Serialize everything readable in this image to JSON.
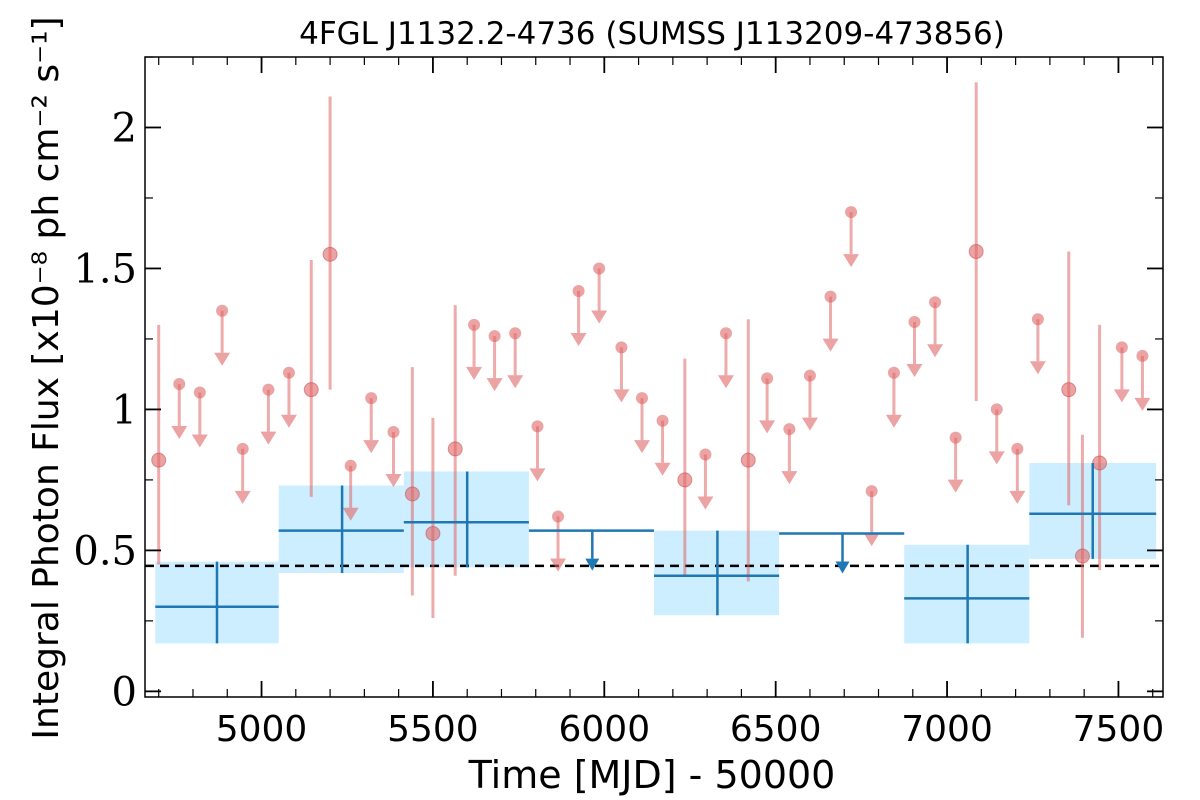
{
  "chart_data": {
    "type": "scatter",
    "title": "4FGL J1132.2-4736 (SUMSS J113209-473856)",
    "xlabel": "Time [MJD] - 50000",
    "ylabel": "Integral Photon Flux [x10⁻⁸ ph cm⁻² s⁻¹]",
    "xlim": [
      4660,
      7630
    ],
    "ylim": [
      -0.02,
      2.25
    ],
    "x_ticks": [
      5000,
      5500,
      6000,
      6500,
      7000,
      7500
    ],
    "x_tick_labels": [
      "5000",
      "5500",
      "6000",
      "6500",
      "7000",
      "7500"
    ],
    "y_ticks": [
      0,
      0.5,
      1,
      1.5,
      2
    ],
    "y_tick_labels": [
      "0",
      "0.5",
      "1",
      "1.5",
      "2"
    ],
    "reference_line": {
      "y": 0.445,
      "style": "dashed",
      "color": "#000000"
    },
    "colors": {
      "fine_bins": "#e06666",
      "coarse_bins": "#1f77b4",
      "coarse_band": "#cceeff"
    },
    "fine_bins_detections": [
      {
        "x": 4700,
        "y": 0.82,
        "ylo": 0.45,
        "yhi": 1.3
      },
      {
        "x": 5145,
        "y": 1.07,
        "ylo": 0.69,
        "yhi": 1.53
      },
      {
        "x": 5200,
        "y": 1.55,
        "ylo": 1.07,
        "yhi": 2.11
      },
      {
        "x": 5440,
        "y": 0.7,
        "ylo": 0.34,
        "yhi": 1.15
      },
      {
        "x": 5500,
        "y": 0.56,
        "ylo": 0.26,
        "yhi": 0.97
      },
      {
        "x": 5565,
        "y": 0.86,
        "ylo": 0.41,
        "yhi": 1.37
      },
      {
        "x": 6235,
        "y": 0.75,
        "ylo": 0.41,
        "yhi": 1.18
      },
      {
        "x": 6420,
        "y": 0.82,
        "ylo": 0.39,
        "yhi": 1.32
      },
      {
        "x": 7085,
        "y": 1.56,
        "ylo": 1.03,
        "yhi": 2.16
      },
      {
        "x": 7355,
        "y": 1.07,
        "ylo": 0.66,
        "yhi": 1.56
      },
      {
        "x": 7395,
        "y": 0.48,
        "ylo": 0.19,
        "yhi": 0.91
      },
      {
        "x": 7445,
        "y": 0.81,
        "ylo": 0.43,
        "yhi": 1.3
      }
    ],
    "fine_bins_upper_limits": [
      {
        "x": 4760,
        "y": 1.09
      },
      {
        "x": 4820,
        "y": 1.06
      },
      {
        "x": 4885,
        "y": 1.35
      },
      {
        "x": 4945,
        "y": 0.86
      },
      {
        "x": 5020,
        "y": 1.07
      },
      {
        "x": 5080,
        "y": 1.13
      },
      {
        "x": 5260,
        "y": 0.8
      },
      {
        "x": 5320,
        "y": 1.04
      },
      {
        "x": 5385,
        "y": 0.92
      },
      {
        "x": 5620,
        "y": 1.3
      },
      {
        "x": 5680,
        "y": 1.26
      },
      {
        "x": 5740,
        "y": 1.27
      },
      {
        "x": 5805,
        "y": 0.94
      },
      {
        "x": 5865,
        "y": 0.62
      },
      {
        "x": 5925,
        "y": 1.42
      },
      {
        "x": 5985,
        "y": 1.5
      },
      {
        "x": 6050,
        "y": 1.22
      },
      {
        "x": 6110,
        "y": 1.04
      },
      {
        "x": 6170,
        "y": 0.96
      },
      {
        "x": 6295,
        "y": 0.84
      },
      {
        "x": 6355,
        "y": 1.27
      },
      {
        "x": 6475,
        "y": 1.11
      },
      {
        "x": 6540,
        "y": 0.93
      },
      {
        "x": 6600,
        "y": 1.12
      },
      {
        "x": 6660,
        "y": 1.4
      },
      {
        "x": 6720,
        "y": 1.7
      },
      {
        "x": 6780,
        "y": 0.71
      },
      {
        "x": 6845,
        "y": 1.13
      },
      {
        "x": 6905,
        "y": 1.31
      },
      {
        "x": 6965,
        "y": 1.38
      },
      {
        "x": 7025,
        "y": 0.9
      },
      {
        "x": 7145,
        "y": 1.0
      },
      {
        "x": 7205,
        "y": 0.86
      },
      {
        "x": 7265,
        "y": 1.32
      },
      {
        "x": 7510,
        "y": 1.22
      },
      {
        "x": 7570,
        "y": 1.19
      }
    ],
    "coarse_bins_detections": [
      {
        "x": 4870,
        "xlo": 4690,
        "xhi": 5050,
        "y": 0.3,
        "ylo": 0.17,
        "yhi": 0.46
      },
      {
        "x": 5235,
        "xlo": 5050,
        "xhi": 5415,
        "y": 0.57,
        "ylo": 0.42,
        "yhi": 0.73
      },
      {
        "x": 5600,
        "xlo": 5415,
        "xhi": 5780,
        "y": 0.6,
        "ylo": 0.44,
        "yhi": 0.78
      },
      {
        "x": 6330,
        "xlo": 6145,
        "xhi": 6510,
        "y": 0.41,
        "ylo": 0.27,
        "yhi": 0.57
      },
      {
        "x": 7060,
        "xlo": 6875,
        "xhi": 7240,
        "y": 0.33,
        "ylo": 0.17,
        "yhi": 0.52
      },
      {
        "x": 7425,
        "xlo": 7240,
        "xhi": 7610,
        "y": 0.63,
        "ylo": 0.47,
        "yhi": 0.81
      }
    ],
    "coarse_bins_upper_limits": [
      {
        "x": 5965,
        "xlo": 5780,
        "xhi": 6145,
        "y": 0.57
      },
      {
        "x": 6695,
        "xlo": 6510,
        "xhi": 6875,
        "y": 0.56
      }
    ]
  }
}
